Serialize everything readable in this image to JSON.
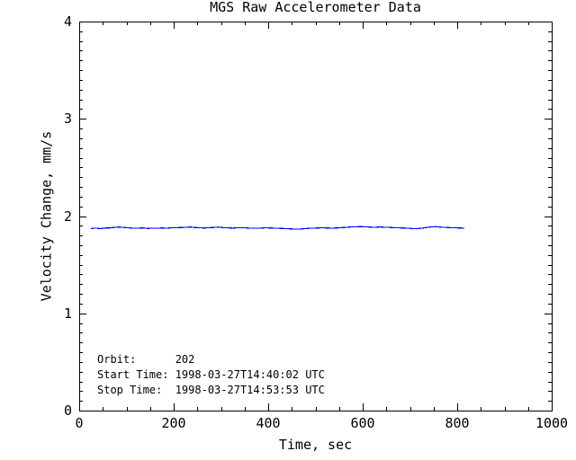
{
  "chart_data": {
    "type": "line",
    "title": "MGS Raw Accelerometer Data",
    "xlabel": "Time, sec",
    "ylabel": "Velocity Change, mm/s",
    "xlim": [
      0,
      1000
    ],
    "ylim": [
      0,
      4
    ],
    "x_ticks": [
      0,
      200,
      400,
      600,
      800,
      1000
    ],
    "y_ticks": [
      0,
      1,
      2,
      3,
      4
    ],
    "x_minor_step": 50,
    "y_minor_step": 0.1,
    "grid": false,
    "legend": "none",
    "series": [
      {
        "name": "velocity_change",
        "color": "#0000ff",
        "t_start": 25,
        "t_step": 10,
        "values": [
          1.872,
          1.876,
          1.871,
          1.877,
          1.878,
          1.884,
          1.887,
          1.883,
          1.879,
          1.875,
          1.876,
          1.878,
          1.873,
          1.874,
          1.874,
          1.878,
          1.875,
          1.879,
          1.88,
          1.883,
          1.884,
          1.887,
          1.882,
          1.881,
          1.877,
          1.881,
          1.883,
          1.886,
          1.881,
          1.879,
          1.876,
          1.88,
          1.881,
          1.878,
          1.874,
          1.875,
          1.876,
          1.88,
          1.877,
          1.876,
          1.873,
          1.872,
          1.869,
          1.867,
          1.865,
          1.87,
          1.873,
          1.876,
          1.877,
          1.88,
          1.877,
          1.876,
          1.877,
          1.881,
          1.884,
          1.888,
          1.889,
          1.892,
          1.889,
          1.887,
          1.884,
          1.888,
          1.885,
          1.884,
          1.881,
          1.88,
          1.877,
          1.876,
          1.872,
          1.871,
          1.875,
          1.883,
          1.888,
          1.891,
          1.886,
          1.884,
          1.881,
          1.88,
          1.877,
          1.876
        ]
      }
    ],
    "annotations": [
      "Orbit:      202",
      "Start Time: 1998-03-27T14:40:02 UTC",
      "Stop Time:  1998-03-27T14:53:53 UTC"
    ]
  },
  "colors": {
    "background": "#ffffff",
    "axis": "#000000",
    "text": "#000000",
    "line": "#0000ff"
  }
}
